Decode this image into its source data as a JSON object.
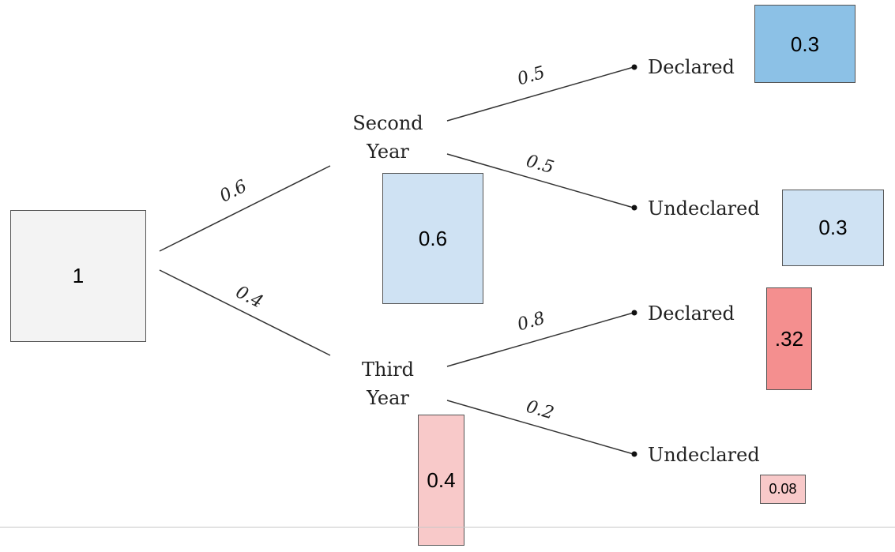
{
  "colors": {
    "root_fill": "#f3f3f3",
    "second_year_fill": "#cfe2f3",
    "second_declared_fill": "#8cc1e6",
    "second_undeclared_fill": "#cfe2f3",
    "third_year_fill": "#f8c9c9",
    "third_declared_fill": "#f48f8f",
    "third_undeclared_fill": "#f8c9c9",
    "line": "#333333"
  },
  "root": {
    "value": "1"
  },
  "second_year": {
    "label_line1": "Second",
    "label_line2": "Year",
    "value": "0.6",
    "edge_prob": "0.6",
    "declared": {
      "label": "Declared",
      "edge_prob": "0.5",
      "value": "0.3"
    },
    "undeclared": {
      "label": "Undeclared",
      "edge_prob": "0.5",
      "value": "0.3"
    }
  },
  "third_year": {
    "label_line1": "Third",
    "label_line2": "Year",
    "value": "0.4",
    "edge_prob": "0.4",
    "declared": {
      "label": "Declared",
      "edge_prob": "0.8",
      "value": ".32"
    },
    "undeclared": {
      "label": "Undeclared",
      "edge_prob": "0.2",
      "value": "0.08"
    }
  }
}
